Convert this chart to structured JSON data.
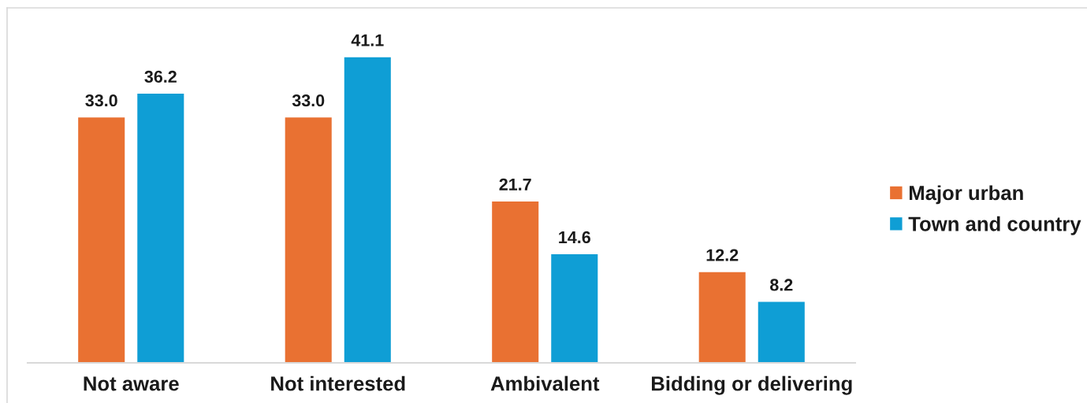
{
  "chart_data": {
    "type": "bar",
    "categories": [
      "Not aware",
      "Not interested",
      "Ambivalent",
      "Bidding or delivering"
    ],
    "series": [
      {
        "name": "Major urban",
        "color": "#e97132",
        "values": [
          33.0,
          33.0,
          21.7,
          12.2
        ],
        "value_labels": [
          "33.0",
          "33.0",
          "21.7",
          "12.2"
        ]
      },
      {
        "name": "Town and country",
        "color": "#0f9ed5",
        "values": [
          36.2,
          41.1,
          14.6,
          8.2
        ],
        "value_labels": [
          "36.2",
          "41.1",
          "14.6",
          "8.2"
        ]
      }
    ],
    "legend": "right"
  }
}
